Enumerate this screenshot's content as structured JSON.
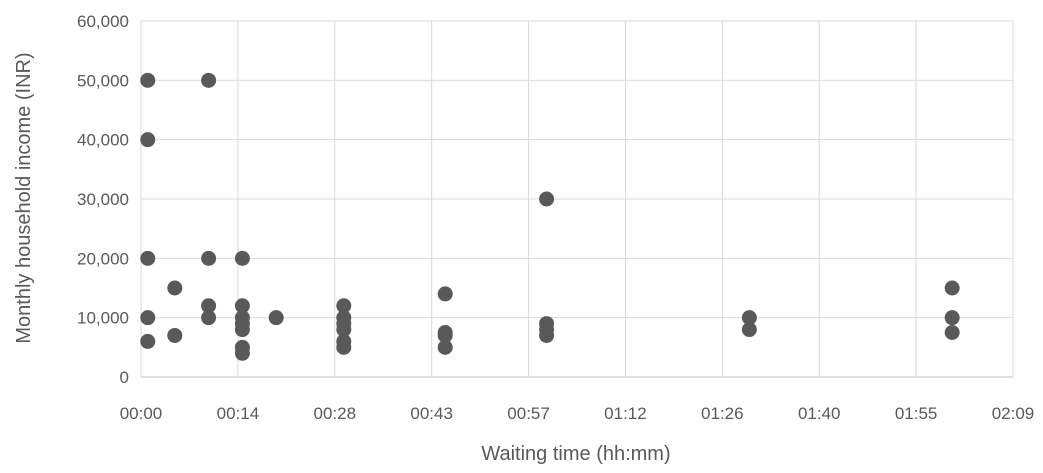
{
  "chart_data": {
    "type": "scatter",
    "title": "",
    "xlabel": "Waiting time (hh:mm)",
    "ylabel": "Monthly household income (INR)",
    "xlim": [
      "00:00",
      "02:09"
    ],
    "ylim": [
      0,
      60000
    ],
    "x_ticks": [
      "00:00",
      "00:14",
      "00:28",
      "00:43",
      "00:57",
      "01:12",
      "01:26",
      "01:40",
      "01:55",
      "02:09"
    ],
    "y_ticks": [
      "0",
      "10,000",
      "20,000",
      "30,000",
      "40,000",
      "50,000",
      "60,000"
    ],
    "y_tick_values": [
      0,
      10000,
      20000,
      30000,
      40000,
      50000,
      60000
    ],
    "grid": true,
    "legend": "none",
    "marker_color": "#595959",
    "points": [
      {
        "x": "00:01",
        "y": 50000
      },
      {
        "x": "00:01",
        "y": 40000
      },
      {
        "x": "00:01",
        "y": 20000
      },
      {
        "x": "00:01",
        "y": 10000
      },
      {
        "x": "00:01",
        "y": 6000
      },
      {
        "x": "00:05",
        "y": 15000
      },
      {
        "x": "00:05",
        "y": 7000
      },
      {
        "x": "00:10",
        "y": 50000
      },
      {
        "x": "00:10",
        "y": 20000
      },
      {
        "x": "00:10",
        "y": 12000
      },
      {
        "x": "00:10",
        "y": 10000
      },
      {
        "x": "00:15",
        "y": 20000
      },
      {
        "x": "00:15",
        "y": 12000
      },
      {
        "x": "00:15",
        "y": 10000
      },
      {
        "x": "00:15",
        "y": 9000
      },
      {
        "x": "00:15",
        "y": 8000
      },
      {
        "x": "00:15",
        "y": 5000
      },
      {
        "x": "00:15",
        "y": 4000
      },
      {
        "x": "00:20",
        "y": 10000
      },
      {
        "x": "00:30",
        "y": 12000
      },
      {
        "x": "00:30",
        "y": 10000
      },
      {
        "x": "00:30",
        "y": 9000
      },
      {
        "x": "00:30",
        "y": 8000
      },
      {
        "x": "00:30",
        "y": 6000
      },
      {
        "x": "00:30",
        "y": 5000
      },
      {
        "x": "00:45",
        "y": 14000
      },
      {
        "x": "00:45",
        "y": 7500
      },
      {
        "x": "00:45",
        "y": 7000
      },
      {
        "x": "00:45",
        "y": 5000
      },
      {
        "x": "01:00",
        "y": 30000
      },
      {
        "x": "01:00",
        "y": 9000
      },
      {
        "x": "01:00",
        "y": 8000
      },
      {
        "x": "01:00",
        "y": 7000
      },
      {
        "x": "01:30",
        "y": 10000
      },
      {
        "x": "01:30",
        "y": 8000
      },
      {
        "x": "02:00",
        "y": 15000
      },
      {
        "x": "02:00",
        "y": 10000
      },
      {
        "x": "02:00",
        "y": 7500
      }
    ]
  }
}
